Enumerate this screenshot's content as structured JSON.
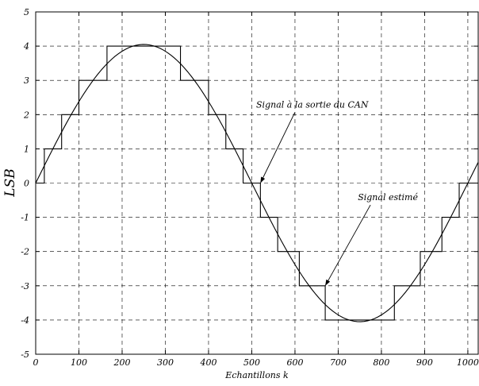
{
  "chart_data": {
    "type": "line",
    "xlabel": "Echantillons k",
    "ylabel": "LSB",
    "xlim": [
      0,
      1024
    ],
    "ylim": [
      -5,
      5
    ],
    "x_ticks": [
      0,
      100,
      200,
      300,
      400,
      500,
      600,
      700,
      800,
      900,
      1000
    ],
    "x_tick_labels": [
      "0",
      "100",
      "200",
      "300",
      "400",
      "500",
      "600",
      "700",
      "800",
      "900",
      "1000"
    ],
    "y_ticks": [
      5,
      4,
      3,
      2,
      1,
      0,
      -1,
      -2,
      -3,
      -4,
      -5
    ],
    "y_tick_labels": [
      "5",
      "4",
      "3",
      "2",
      "1",
      "0",
      "-1",
      "-2",
      "-3",
      "-4",
      "-5"
    ],
    "grid": true,
    "series": [
      {
        "kind": "sine",
        "amplitude": 4.05,
        "period": 1000,
        "sample_step": 8
      },
      {
        "kind": "staircase",
        "x": [
          0,
          20,
          60,
          100,
          165,
          335,
          400,
          440,
          480,
          520,
          560,
          610,
          670,
          830,
          890,
          940,
          980,
          1024
        ],
        "y": [
          0,
          1,
          2,
          3,
          4,
          3,
          2,
          1,
          0,
          -1,
          -2,
          -3,
          -4,
          -3,
          -2,
          -1,
          0,
          0
        ]
      }
    ],
    "annotations": [
      {
        "text": "Signal à la sortie du CAN",
        "x": 640,
        "y": 2.2,
        "arrow_to": [
          520,
          0
        ]
      },
      {
        "text": "Signal estimé",
        "x": 815,
        "y": -0.5,
        "arrow_to": [
          670,
          -3
        ]
      }
    ]
  }
}
